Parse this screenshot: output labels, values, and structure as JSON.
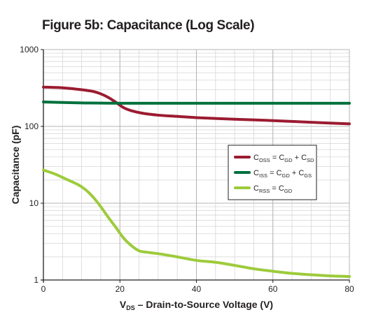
{
  "chart_data": {
    "type": "line",
    "title": "Figure 5b: Capacitance (Log Scale)",
    "xlabel": {
      "main": "V",
      "sub": "DS",
      "rest": " – Drain-to-Source Voltage (V)"
    },
    "ylabel": "Capacitance (pF)",
    "xlim": [
      0,
      80
    ],
    "ylim": [
      1,
      1000
    ],
    "yscale": "log",
    "grid": true,
    "legend_position": "right-middle",
    "x_ticks": [
      {
        "value": 0,
        "label": "0"
      },
      {
        "value": 20,
        "label": "20"
      },
      {
        "value": 40,
        "label": "40"
      },
      {
        "value": 60,
        "label": "60"
      },
      {
        "value": 80,
        "label": "80"
      }
    ],
    "y_ticks": [
      {
        "value": 1,
        "label": "1"
      },
      {
        "value": 10,
        "label": "10"
      },
      {
        "value": 100,
        "label": "100"
      },
      {
        "value": 1000,
        "label": "1000"
      }
    ],
    "series": [
      {
        "key": "coss",
        "legend": [
          {
            "t": "C"
          },
          {
            "t": "OSS",
            "sub": true
          },
          {
            "t": " = C"
          },
          {
            "t": "GD",
            "sub": true
          },
          {
            "t": " + C"
          },
          {
            "t": "SD",
            "sub": true
          }
        ],
        "color": "#9b1b30",
        "x": [
          0,
          5,
          10,
          13,
          15,
          17,
          19,
          21,
          23,
          26,
          30,
          35,
          40,
          50,
          60,
          70,
          80
        ],
        "y": [
          325,
          318,
          300,
          285,
          265,
          238,
          205,
          175,
          160,
          148,
          140,
          135,
          130,
          124,
          119,
          113,
          108
        ]
      },
      {
        "key": "ciss",
        "legend": [
          {
            "t": "C"
          },
          {
            "t": "ISS",
            "sub": true
          },
          {
            "t": " = C"
          },
          {
            "t": "GD",
            "sub": true
          },
          {
            "t": " + C"
          },
          {
            "t": "GS",
            "sub": true
          }
        ],
        "color": "#00703c",
        "x": [
          0,
          5,
          10,
          15,
          20,
          30,
          40,
          50,
          60,
          70,
          80
        ],
        "y": [
          208,
          205,
          202,
          201,
          200,
          200,
          200,
          200,
          200,
          200,
          200
        ]
      },
      {
        "key": "crss",
        "legend": [
          {
            "t": "C"
          },
          {
            "t": "RSS",
            "sub": true
          },
          {
            "t": " = C"
          },
          {
            "t": "GD",
            "sub": true
          }
        ],
        "color": "#9dcb3b",
        "x": [
          0,
          3,
          6,
          9,
          11,
          13,
          15,
          17,
          19,
          21,
          23,
          25,
          27,
          30,
          35,
          40,
          45,
          50,
          55,
          60,
          65,
          70,
          75,
          80
        ],
        "y": [
          27,
          24,
          20.5,
          17.5,
          15,
          12,
          9,
          6.5,
          4.8,
          3.5,
          2.8,
          2.4,
          2.3,
          2.2,
          2.0,
          1.8,
          1.7,
          1.55,
          1.4,
          1.3,
          1.22,
          1.17,
          1.13,
          1.11
        ]
      }
    ]
  }
}
